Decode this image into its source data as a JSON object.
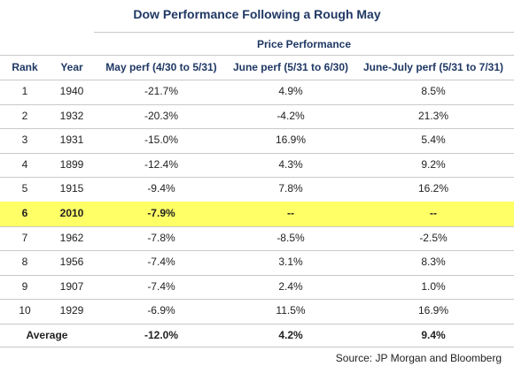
{
  "title": "Dow Performance Following a Rough May",
  "subheader": "Price Performance",
  "columns": {
    "rank": "Rank",
    "year": "Year",
    "may": "May perf (4/30 to 5/31)",
    "june": "June perf (5/31 to 6/30)",
    "june_july": "June-July perf (5/31 to 7/31)"
  },
  "rows": [
    {
      "rank": "1",
      "year": "1940",
      "may": "-21.7%",
      "june": "4.9%",
      "june_july": "8.5%"
    },
    {
      "rank": "2",
      "year": "1932",
      "may": "-20.3%",
      "june": "-4.2%",
      "june_july": "21.3%"
    },
    {
      "rank": "3",
      "year": "1931",
      "may": "-15.0%",
      "june": "16.9%",
      "june_july": "5.4%"
    },
    {
      "rank": "4",
      "year": "1899",
      "may": "-12.4%",
      "june": "4.3%",
      "june_july": "9.2%"
    },
    {
      "rank": "5",
      "year": "1915",
      "may": "-9.4%",
      "june": "7.8%",
      "june_july": "16.2%"
    },
    {
      "rank": "6",
      "year": "2010",
      "may": "-7.9%",
      "june": "--",
      "june_july": "--"
    },
    {
      "rank": "7",
      "year": "1962",
      "may": "-7.8%",
      "june": "-8.5%",
      "june_july": "-2.5%"
    },
    {
      "rank": "8",
      "year": "1956",
      "may": "-7.4%",
      "june": "3.1%",
      "june_july": "8.3%"
    },
    {
      "rank": "9",
      "year": "1907",
      "may": "-7.4%",
      "june": "2.4%",
      "june_july": "1.0%"
    },
    {
      "rank": "10",
      "year": "1929",
      "may": "-6.9%",
      "june": "11.5%",
      "june_july": "16.9%"
    }
  ],
  "average": {
    "label": "Average",
    "may": "-12.0%",
    "june": "4.2%",
    "june_july": "9.4%"
  },
  "source": "Source: JP Morgan and Bloomberg",
  "highlight_color": "#ffff66"
}
